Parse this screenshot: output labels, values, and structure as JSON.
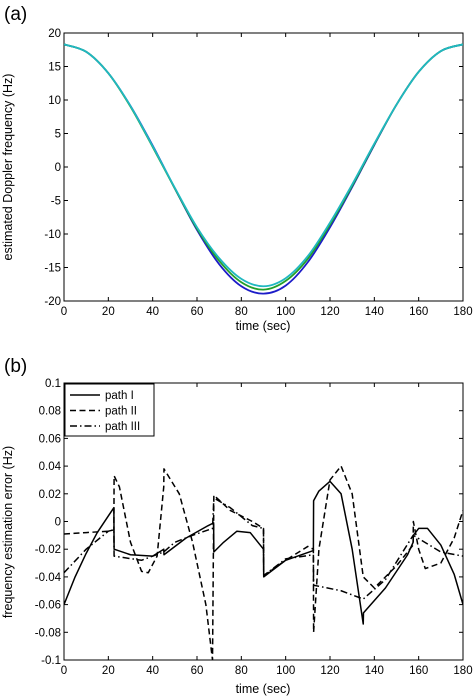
{
  "chart_data": [
    {
      "type": "line",
      "panel_label": "(a)",
      "xlabel": "time (sec)",
      "ylabel": "estimated Doppler frequency (Hz)",
      "xlim": [
        0,
        180
      ],
      "ylim": [
        -20,
        20
      ],
      "xticks": [
        0,
        20,
        40,
        60,
        80,
        100,
        120,
        140,
        160,
        180
      ],
      "yticks": [
        -20,
        -15,
        -10,
        -5,
        0,
        5,
        10,
        15,
        20
      ],
      "grid": false,
      "x": [
        0,
        10,
        20,
        30,
        40,
        50,
        60,
        70,
        80,
        90,
        100,
        110,
        120,
        130,
        140,
        150,
        160,
        170,
        180
      ],
      "series": [
        {
          "color": "#1c1cc8",
          "values": [
            18.3,
            17.2,
            14.0,
            9.1,
            3.2,
            -3.2,
            -9.4,
            -14.5,
            -17.8,
            -18.9,
            -17.7,
            -14.2,
            -9.0,
            -3.0,
            3.3,
            9.3,
            14.2,
            17.3,
            18.3
          ]
        },
        {
          "color": "#22a02a",
          "values": [
            18.3,
            17.2,
            14.0,
            9.0,
            3.0,
            -3.2,
            -9.2,
            -14.0,
            -17.2,
            -18.3,
            -17.0,
            -13.7,
            -8.6,
            -2.8,
            3.4,
            9.3,
            14.2,
            17.3,
            18.3
          ]
        },
        {
          "color": "#20b8c0",
          "values": [
            18.3,
            17.2,
            14.0,
            9.1,
            3.1,
            -3.1,
            -9.0,
            -13.6,
            -16.7,
            -17.8,
            -16.6,
            -13.3,
            -8.3,
            -2.6,
            3.5,
            9.3,
            14.2,
            17.3,
            18.3
          ]
        }
      ]
    },
    {
      "type": "line",
      "panel_label": "(b)",
      "xlabel": "time (sec)",
      "ylabel": "frequency estimation error (Hz)",
      "xlim": [
        0,
        180
      ],
      "ylim": [
        -0.1,
        0.1
      ],
      "xticks": [
        0,
        20,
        40,
        60,
        80,
        100,
        120,
        140,
        160,
        180
      ],
      "yticks": [
        -0.1,
        -0.08,
        -0.06,
        -0.04,
        -0.02,
        0,
        0.02,
        0.04,
        0.06,
        0.08,
        0.1
      ],
      "grid": false,
      "legend_position": "top-left",
      "series": [
        {
          "name": "path I",
          "dash": "solid",
          "points": [
            [
              0,
              -0.06
            ],
            [
              5,
              -0.04
            ],
            [
              10,
              -0.023
            ],
            [
              15,
              -0.008
            ],
            [
              20,
              0.004
            ],
            [
              22.5,
              0.01
            ],
            [
              22.6,
              -0.02
            ],
            [
              30,
              -0.024
            ],
            [
              40,
              -0.025
            ],
            [
              45,
              -0.02
            ],
            [
              45.1,
              -0.024
            ],
            [
              55,
              -0.012
            ],
            [
              65,
              -0.003
            ],
            [
              67.5,
              -0.001
            ],
            [
              67.6,
              -0.022
            ],
            [
              72,
              -0.015
            ],
            [
              78,
              -0.007
            ],
            [
              84,
              -0.008
            ],
            [
              90,
              -0.02
            ],
            [
              90.1,
              -0.04
            ],
            [
              100,
              -0.028
            ],
            [
              112.5,
              -0.021
            ],
            [
              112.6,
              0.015
            ],
            [
              115,
              0.022
            ],
            [
              120,
              0.029
            ],
            [
              125,
              0.02
            ],
            [
              130,
              -0.02
            ],
            [
              135,
              -0.074
            ],
            [
              135.1,
              -0.066
            ],
            [
              145,
              -0.048
            ],
            [
              155,
              -0.024
            ],
            [
              157.5,
              -0.015
            ],
            [
              157.6,
              -0.01
            ],
            [
              160,
              -0.005
            ],
            [
              164,
              -0.005
            ],
            [
              170,
              -0.017
            ],
            [
              176,
              -0.038
            ],
            [
              180,
              -0.06
            ]
          ]
        },
        {
          "name": "path II",
          "dash": "dashed",
          "points": [
            [
              0,
              -0.009
            ],
            [
              10,
              -0.008
            ],
            [
              20,
              -0.007
            ],
            [
              22.5,
              -0.006
            ],
            [
              22.6,
              0.033
            ],
            [
              25,
              0.025
            ],
            [
              30,
              -0.015
            ],
            [
              35,
              -0.036
            ],
            [
              38,
              -0.037
            ],
            [
              42,
              -0.025
            ],
            [
              45,
              0.025
            ],
            [
              45.1,
              0.038
            ],
            [
              52,
              0.02
            ],
            [
              58,
              -0.015
            ],
            [
              64,
              -0.06
            ],
            [
              67,
              -0.1
            ],
            [
              67.6,
              0.019
            ],
            [
              75,
              0.008
            ],
            [
              85,
              0.0
            ],
            [
              90,
              -0.005
            ],
            [
              90.1,
              -0.039
            ],
            [
              100,
              -0.028
            ],
            [
              110,
              -0.018
            ],
            [
              112.5,
              -0.02
            ],
            [
              112.6,
              -0.08
            ],
            [
              115,
              -0.02
            ],
            [
              120,
              0.03
            ],
            [
              125,
              0.04
            ],
            [
              130,
              0.02
            ],
            [
              135,
              -0.04
            ],
            [
              140,
              -0.048
            ],
            [
              150,
              -0.032
            ],
            [
              157.5,
              -0.017
            ],
            [
              157.6,
              0.0
            ],
            [
              160,
              -0.02
            ],
            [
              163,
              -0.034
            ],
            [
              170,
              -0.03
            ],
            [
              176,
              -0.012
            ],
            [
              180,
              0.008
            ]
          ]
        },
        {
          "name": "path III",
          "dash": "dashdot",
          "points": [
            [
              0,
              -0.037
            ],
            [
              10,
              -0.02
            ],
            [
              20,
              -0.007
            ],
            [
              22.5,
              -0.006
            ],
            [
              22.6,
              -0.025
            ],
            [
              35,
              -0.028
            ],
            [
              45,
              -0.022
            ],
            [
              50,
              -0.015
            ],
            [
              58,
              -0.01
            ],
            [
              67,
              -0.005
            ],
            [
              67.6,
              0.017
            ],
            [
              75,
              0.01
            ],
            [
              85,
              -0.003
            ],
            [
              90,
              -0.005
            ],
            [
              90.1,
              -0.039
            ],
            [
              100,
              -0.027
            ],
            [
              112.5,
              -0.024
            ],
            [
              112.6,
              -0.046
            ],
            [
              125,
              -0.05
            ],
            [
              135,
              -0.056
            ],
            [
              145,
              -0.042
            ],
            [
              157.5,
              -0.01
            ],
            [
              157.6,
              -0.01
            ],
            [
              170,
              -0.022
            ],
            [
              180,
              -0.025
            ]
          ]
        }
      ]
    }
  ]
}
